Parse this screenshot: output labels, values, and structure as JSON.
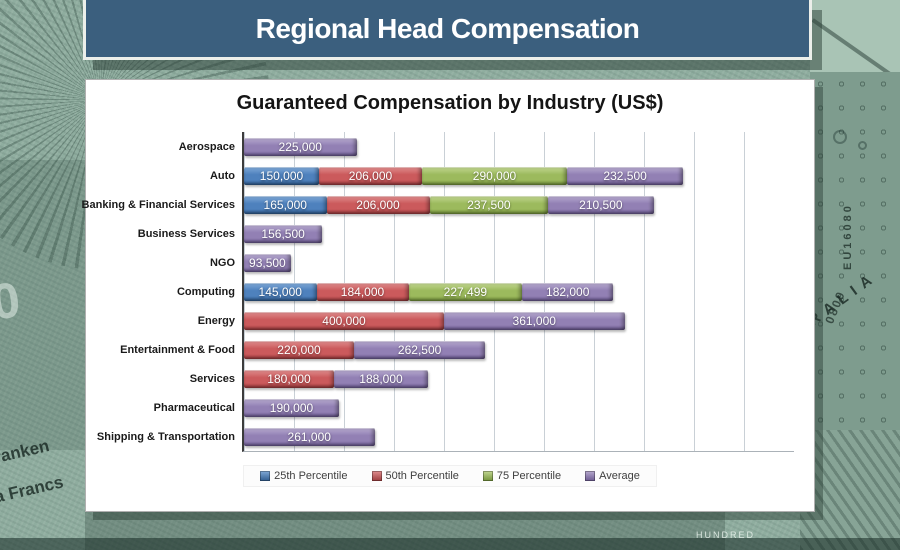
{
  "header": {
    "title": "Regional Head Compensation"
  },
  "chart_data": {
    "type": "bar",
    "orientation": "horizontal",
    "stacked": true,
    "title": "Guaranteed Compensation by Industry (US$)",
    "categories": [
      "Aerospace",
      "Auto",
      "Banking & Financial Services",
      "Business Services",
      "NGO",
      "Computing",
      "Energy",
      "Entertainment & Food",
      "Services",
      "Pharmaceutical",
      "Shipping & Transportation"
    ],
    "series": [
      {
        "name": "25th Percentile",
        "color": "#4E81BD",
        "light": "#82ABD9",
        "dark": "#2F5B8E",
        "values": [
          null,
          150000,
          165000,
          null,
          null,
          145000,
          null,
          null,
          null,
          null,
          null
        ]
      },
      {
        "name": "50th Percentile",
        "color": "#CB5A5C",
        "light": "#E18F90",
        "dark": "#9C3B3D",
        "values": [
          null,
          206000,
          206000,
          null,
          null,
          184000,
          400000,
          220000,
          180000,
          null,
          null
        ]
      },
      {
        "name": "75 Percentile",
        "color": "#9CBA5D",
        "light": "#C3D893",
        "dark": "#73923A",
        "values": [
          null,
          290000,
          237500,
          null,
          null,
          227499,
          null,
          null,
          null,
          null,
          null
        ]
      },
      {
        "name": "Average",
        "color": "#9280B4",
        "light": "#B8ABD0",
        "dark": "#6C5A91",
        "values": [
          225000,
          232500,
          210500,
          156500,
          93500,
          182000,
          361000,
          262500,
          188000,
          190000,
          261000
        ]
      }
    ],
    "xlim": [
      0,
      1104000
    ],
    "gridline_interval": 100000,
    "axis_tick_labels_visible": false,
    "value_labels": "inside-center, comma-formatted",
    "legend_position": "bottom"
  },
  "background": {
    "texts": {
      "australia": "TRALIA",
      "serial": "EU16080",
      "serial2": "0809",
      "franken": "ranken",
      "francs": "a Francs",
      "hundred": "HUNDRED",
      "big_zero": "0"
    }
  },
  "colors": {
    "page_bg": "#8FAD9F",
    "banner_bg": "#3B5F7E",
    "banner_text": "#FFFFFF",
    "panel_bg": "#FFFFFF"
  }
}
